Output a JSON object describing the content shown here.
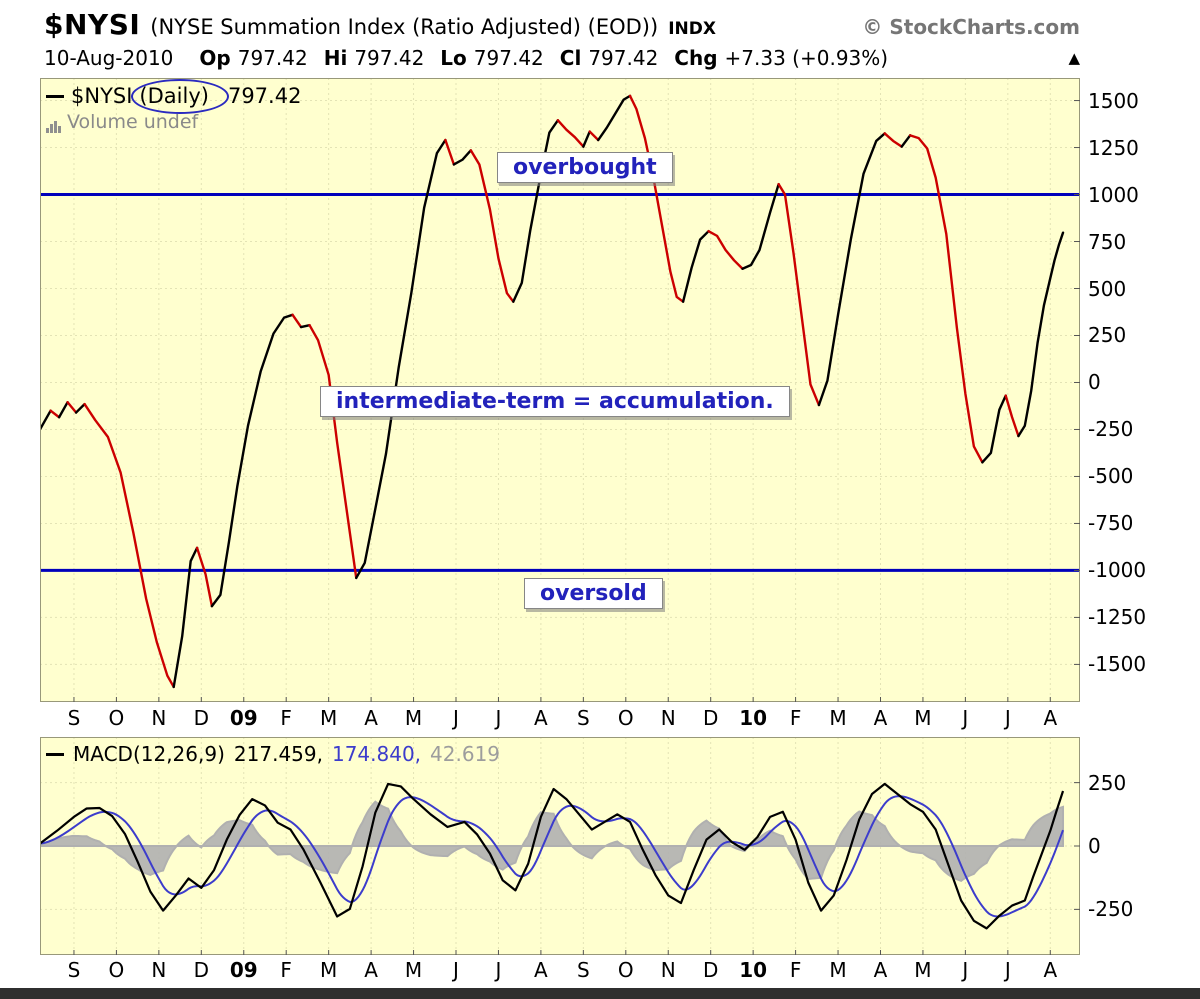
{
  "header": {
    "symbol": "$NYSI",
    "description": "(NYSE Summation Index (Ratio Adjusted) (EOD))",
    "exchange": "INDX",
    "credit": "© StockCharts.com"
  },
  "quote": {
    "date": "10-Aug-2010",
    "fields": [
      {
        "label": "Op",
        "value": "797.42"
      },
      {
        "label": "Hi",
        "value": "797.42"
      },
      {
        "label": "Lo",
        "value": "797.42"
      },
      {
        "label": "Cl",
        "value": "797.42"
      },
      {
        "label": "Chg",
        "value": "+7.33 (+0.93%)"
      }
    ],
    "direction_arrow": "▲"
  },
  "main_panel": {
    "legend": {
      "symbol": "$NYSI",
      "timeframe": "(Daily)",
      "value": "797.42"
    },
    "volume_label": "Volume undef",
    "annotations": {
      "overbought": "overbought",
      "middle": "intermediate-term = accumulation.",
      "oversold": "oversold"
    }
  },
  "macd_panel": {
    "legend_label": "MACD(12,26,9)",
    "macd_value": "217.459,",
    "signal_value": "174.840,",
    "hist_value": "42.619"
  },
  "colors": {
    "background": "#ffffcf",
    "grid": "#e3e3b5",
    "border": "#98987a",
    "up": "#000000",
    "down": "#cc0000",
    "threshold_line": "#0000bb",
    "annotation_text": "#2222bb",
    "macd_line": "#000000",
    "signal_line": "#3c3ccc",
    "histogram": "#b0b0b0"
  },
  "chart_data": [
    {
      "type": "line",
      "title": "$NYSI (Daily)",
      "last_value": 797.42,
      "x_unit": "months, tick 0 = Sep-2008, tick 23 = Aug-2010",
      "x_tick_labels": [
        "S",
        "O",
        "N",
        "D",
        "09",
        "F",
        "M",
        "A",
        "M",
        "J",
        "J",
        "A",
        "S",
        "O",
        "N",
        "D",
        "10",
        "F",
        "M",
        "A",
        "M",
        "J",
        "J",
        "A"
      ],
      "bold_tick_labels": [
        "09",
        "10"
      ],
      "xlim": [
        -0.8,
        23.7
      ],
      "ylim": [
        -1700,
        1620
      ],
      "y_ticks": [
        1500,
        1250,
        1000,
        750,
        500,
        250,
        0,
        -250,
        -500,
        -750,
        -1000,
        -1250,
        -1500
      ],
      "hlines": [
        1000,
        -1000
      ],
      "color_rule": "black segments when rising, red segments when falling",
      "series": [
        {
          "name": "NYSI",
          "points": [
            [
              -0.8,
              -250
            ],
            [
              -0.55,
              -150
            ],
            [
              -0.35,
              -185
            ],
            [
              -0.15,
              -105
            ],
            [
              0.05,
              -160
            ],
            [
              0.25,
              -115
            ],
            [
              0.5,
              -200
            ],
            [
              0.8,
              -290
            ],
            [
              1.1,
              -480
            ],
            [
              1.4,
              -800
            ],
            [
              1.7,
              -1150
            ],
            [
              1.95,
              -1380
            ],
            [
              2.2,
              -1560
            ],
            [
              2.35,
              -1620
            ],
            [
              2.55,
              -1350
            ],
            [
              2.75,
              -950
            ],
            [
              2.9,
              -880
            ],
            [
              3.1,
              -1020
            ],
            [
              3.25,
              -1190
            ],
            [
              3.45,
              -1130
            ],
            [
              3.65,
              -850
            ],
            [
              3.85,
              -550
            ],
            [
              4.1,
              -230
            ],
            [
              4.4,
              60
            ],
            [
              4.7,
              260
            ],
            [
              4.95,
              345
            ],
            [
              5.15,
              360
            ],
            [
              5.35,
              295
            ],
            [
              5.55,
              305
            ],
            [
              5.75,
              225
            ],
            [
              6,
              40
            ],
            [
              6.2,
              -320
            ],
            [
              6.45,
              -720
            ],
            [
              6.65,
              -1040
            ],
            [
              6.85,
              -960
            ],
            [
              7.05,
              -730
            ],
            [
              7.35,
              -380
            ],
            [
              7.65,
              80
            ],
            [
              7.95,
              480
            ],
            [
              8.25,
              930
            ],
            [
              8.55,
              1220
            ],
            [
              8.75,
              1290
            ],
            [
              8.95,
              1160
            ],
            [
              9.15,
              1185
            ],
            [
              9.35,
              1235
            ],
            [
              9.55,
              1160
            ],
            [
              9.8,
              920
            ],
            [
              10,
              660
            ],
            [
              10.2,
              475
            ],
            [
              10.35,
              430
            ],
            [
              10.55,
              530
            ],
            [
              10.75,
              810
            ],
            [
              11,
              1110
            ],
            [
              11.2,
              1330
            ],
            [
              11.4,
              1395
            ],
            [
              11.6,
              1345
            ],
            [
              11.8,
              1305
            ],
            [
              12,
              1255
            ],
            [
              12.15,
              1335
            ],
            [
              12.35,
              1290
            ],
            [
              12.55,
              1355
            ],
            [
              12.75,
              1430
            ],
            [
              12.95,
              1505
            ],
            [
              13.1,
              1525
            ],
            [
              13.25,
              1455
            ],
            [
              13.45,
              1300
            ],
            [
              13.65,
              1090
            ],
            [
              13.85,
              840
            ],
            [
              14.05,
              590
            ],
            [
              14.2,
              455
            ],
            [
              14.35,
              430
            ],
            [
              14.55,
              610
            ],
            [
              14.75,
              760
            ],
            [
              14.95,
              805
            ],
            [
              15.15,
              780
            ],
            [
              15.35,
              705
            ],
            [
              15.55,
              650
            ],
            [
              15.75,
              605
            ],
            [
              15.95,
              625
            ],
            [
              16.15,
              705
            ],
            [
              16.4,
              905
            ],
            [
              16.6,
              1055
            ],
            [
              16.75,
              1000
            ],
            [
              16.95,
              690
            ],
            [
              17.15,
              340
            ],
            [
              17.35,
              -10
            ],
            [
              17.55,
              -120
            ],
            [
              17.75,
              10
            ],
            [
              18,
              360
            ],
            [
              18.3,
              760
            ],
            [
              18.6,
              1110
            ],
            [
              18.9,
              1285
            ],
            [
              19.1,
              1325
            ],
            [
              19.3,
              1285
            ],
            [
              19.5,
              1255
            ],
            [
              19.7,
              1315
            ],
            [
              19.9,
              1300
            ],
            [
              20.1,
              1245
            ],
            [
              20.3,
              1090
            ],
            [
              20.55,
              790
            ],
            [
              20.8,
              290
            ],
            [
              21,
              -60
            ],
            [
              21.2,
              -340
            ],
            [
              21.4,
              -425
            ],
            [
              21.6,
              -375
            ],
            [
              21.8,
              -145
            ],
            [
              21.95,
              -70
            ],
            [
              22.1,
              -185
            ],
            [
              22.25,
              -285
            ],
            [
              22.4,
              -230
            ],
            [
              22.55,
              -45
            ],
            [
              22.7,
              210
            ],
            [
              22.85,
              410
            ],
            [
              23,
              555
            ],
            [
              23.1,
              650
            ],
            [
              23.2,
              730
            ],
            [
              23.3,
              797
            ]
          ]
        }
      ]
    },
    {
      "type": "line",
      "title": "MACD(12,26,9)",
      "x_tick_labels": [
        "S",
        "O",
        "N",
        "D",
        "09",
        "F",
        "M",
        "A",
        "M",
        "J",
        "J",
        "A",
        "S",
        "O",
        "N",
        "D",
        "10",
        "F",
        "M",
        "A",
        "M",
        "J",
        "J",
        "A"
      ],
      "bold_tick_labels": [
        "09",
        "10"
      ],
      "xlim": [
        -0.8,
        23.7
      ],
      "ylim": [
        -430,
        430
      ],
      "y_ticks": [
        250,
        0,
        -250
      ],
      "last_values": {
        "macd": 217.459,
        "signal": 174.84,
        "histogram": 42.619
      },
      "series": [
        {
          "name": "MACD",
          "points": [
            [
              -0.8,
              10
            ],
            [
              -0.4,
              60
            ],
            [
              0,
              115
            ],
            [
              0.3,
              148
            ],
            [
              0.6,
              150
            ],
            [
              0.9,
              118
            ],
            [
              1.2,
              48
            ],
            [
              1.5,
              -62
            ],
            [
              1.8,
              -180
            ],
            [
              2.1,
              -255
            ],
            [
              2.4,
              -195
            ],
            [
              2.7,
              -128
            ],
            [
              3,
              -165
            ],
            [
              3.3,
              -95
            ],
            [
              3.6,
              25
            ],
            [
              3.9,
              122
            ],
            [
              4.2,
              185
            ],
            [
              4.5,
              160
            ],
            [
              4.8,
              92
            ],
            [
              5.1,
              65
            ],
            [
              5.4,
              -12
            ],
            [
              5.8,
              -142
            ],
            [
              6.2,
              -278
            ],
            [
              6.5,
              -248
            ],
            [
              6.8,
              -80
            ],
            [
              7.1,
              132
            ],
            [
              7.4,
              245
            ],
            [
              7.7,
              235
            ],
            [
              8,
              185
            ],
            [
              8.4,
              125
            ],
            [
              8.8,
              75
            ],
            [
              9.2,
              95
            ],
            [
              9.5,
              45
            ],
            [
              9.8,
              -30
            ],
            [
              10.1,
              -135
            ],
            [
              10.4,
              -175
            ],
            [
              10.7,
              -70
            ],
            [
              11,
              115
            ],
            [
              11.3,
              225
            ],
            [
              11.6,
              185
            ],
            [
              11.9,
              125
            ],
            [
              12.2,
              65
            ],
            [
              12.5,
              95
            ],
            [
              12.8,
              125
            ],
            [
              13.1,
              95
            ],
            [
              13.4,
              -15
            ],
            [
              13.7,
              -115
            ],
            [
              14,
              -195
            ],
            [
              14.3,
              -225
            ],
            [
              14.6,
              -95
            ],
            [
              14.9,
              25
            ],
            [
              15.2,
              65
            ],
            [
              15.5,
              15
            ],
            [
              15.8,
              -15
            ],
            [
              16.1,
              35
            ],
            [
              16.4,
              115
            ],
            [
              16.7,
              135
            ],
            [
              17,
              25
            ],
            [
              17.3,
              -145
            ],
            [
              17.6,
              -255
            ],
            [
              17.9,
              -195
            ],
            [
              18.2,
              -55
            ],
            [
              18.5,
              105
            ],
            [
              18.8,
              205
            ],
            [
              19.1,
              245
            ],
            [
              19.4,
              205
            ],
            [
              19.7,
              165
            ],
            [
              20,
              135
            ],
            [
              20.3,
              65
            ],
            [
              20.6,
              -75
            ],
            [
              20.9,
              -215
            ],
            [
              21.2,
              -295
            ],
            [
              21.5,
              -325
            ],
            [
              21.8,
              -275
            ],
            [
              22.1,
              -235
            ],
            [
              22.4,
              -215
            ],
            [
              22.6,
              -120
            ],
            [
              22.8,
              -30
            ],
            [
              23,
              60
            ],
            [
              23.15,
              140
            ],
            [
              23.3,
              217
            ]
          ]
        },
        {
          "name": "Signal",
          "derivation": "EMA(9) of MACD, plotted in blue"
        },
        {
          "name": "Histogram",
          "derivation": "MACD - Signal, gray area around zero"
        }
      ]
    }
  ]
}
